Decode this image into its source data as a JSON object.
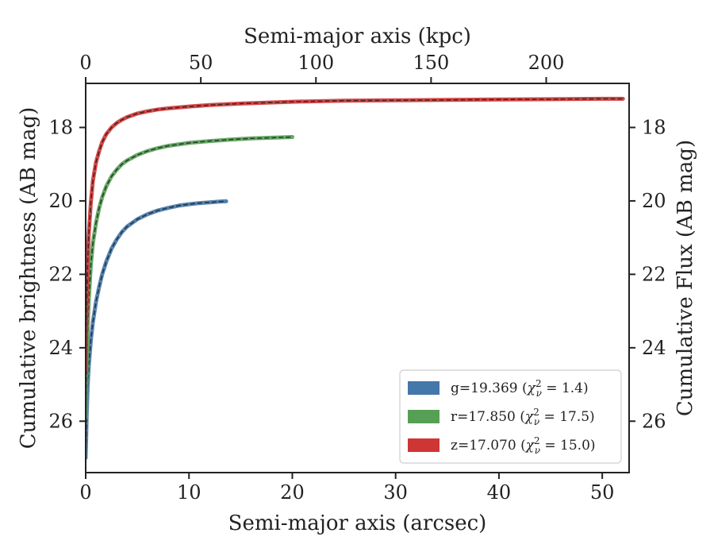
{
  "chart_data": {
    "type": "line",
    "xlabel": "Semi-major axis (arcsec)",
    "ylabel": "Cumulative brightness (AB mag)",
    "top_xlabel": "Semi-major axis (kpc)",
    "right_ylabel": "Cumulative Flux (AB mag)",
    "xlim": [
      0,
      52.6
    ],
    "ylim": [
      27.4,
      16.8
    ],
    "y_inverted": true,
    "top_xlim": [
      0,
      236
    ],
    "x_ticks": [
      0,
      10,
      20,
      30,
      40,
      50
    ],
    "x_tick_labels": [
      "0",
      "10",
      "20",
      "30",
      "40",
      "50"
    ],
    "y_ticks": [
      18,
      20,
      22,
      24,
      26
    ],
    "y_tick_labels": [
      "18",
      "20",
      "22",
      "24",
      "26"
    ],
    "top_x_ticks": [
      0,
      50,
      100,
      150,
      200
    ],
    "top_x_tick_labels": [
      "0",
      "50",
      "100",
      "150",
      "200"
    ],
    "legend_position": "lower-right",
    "grid": false,
    "model_line_color": "#111111",
    "model_line_style": "dashed",
    "series": [
      {
        "name": "g=19.369 (χ²ν = 1.4)",
        "legend_main": "g=19.369 (",
        "legend_math": "χ",
        "legend_sup": "2",
        "legend_sub": "ν",
        "legend_eq": " = 1.4)",
        "color": "#4477aa",
        "x": [
          0.0,
          0.05,
          0.1,
          0.2,
          0.3,
          0.5,
          0.7,
          1.0,
          1.3,
          1.6,
          2.0,
          2.5,
          3.0,
          3.5,
          4.0,
          5.0,
          6.0,
          7.0,
          8.0,
          9.0,
          10.0,
          11.0,
          12.0,
          13.0,
          13.6
        ],
        "y": [
          27.0,
          26.4,
          25.8,
          25.0,
          24.5,
          23.8,
          23.3,
          22.75,
          22.35,
          22.0,
          21.65,
          21.3,
          21.05,
          20.85,
          20.7,
          20.5,
          20.36,
          20.26,
          20.19,
          20.13,
          20.09,
          20.06,
          20.04,
          20.02,
          20.01
        ]
      },
      {
        "name": "r=17.850 (χ²ν = 17.5)",
        "legend_main": "r=17.850 (",
        "legend_math": "χ",
        "legend_sup": "2",
        "legend_sub": "ν",
        "legend_eq": " = 17.5)",
        "color": "#55a055",
        "x": [
          0.0,
          0.05,
          0.1,
          0.2,
          0.3,
          0.5,
          0.7,
          1.0,
          1.3,
          1.6,
          2.0,
          2.5,
          3.0,
          3.5,
          4.0,
          5.0,
          6.0,
          7.0,
          8.0,
          10.0,
          12.0,
          14.0,
          16.0,
          18.0,
          20.0
        ],
        "y": [
          25.9,
          25.0,
          24.4,
          23.4,
          22.7,
          21.75,
          21.15,
          20.6,
          20.2,
          19.9,
          19.6,
          19.33,
          19.15,
          19.0,
          18.9,
          18.75,
          18.64,
          18.56,
          18.5,
          18.42,
          18.37,
          18.33,
          18.3,
          18.28,
          18.26
        ]
      },
      {
        "name": "z=17.070 (χ²ν = 15.0)",
        "legend_main": "z=17.070 (",
        "legend_math": "χ",
        "legend_sup": "2",
        "legend_sub": "ν",
        "legend_eq": " = 15.0)",
        "color": "#d03535",
        "x": [
          0.0,
          0.05,
          0.1,
          0.2,
          0.3,
          0.5,
          0.7,
          1.0,
          1.3,
          1.6,
          2.0,
          2.5,
          3.0,
          3.5,
          4.0,
          5.0,
          6.0,
          7.0,
          8.0,
          10.0,
          12.0,
          15.0,
          20.0,
          25.0,
          30.0,
          35.0,
          40.0,
          45.0,
          50.0,
          52.0
        ],
        "y": [
          24.6,
          23.4,
          22.7,
          21.6,
          20.9,
          20.05,
          19.45,
          18.95,
          18.65,
          18.4,
          18.18,
          18.0,
          17.88,
          17.79,
          17.72,
          17.62,
          17.56,
          17.51,
          17.48,
          17.43,
          17.39,
          17.35,
          17.3,
          17.27,
          17.26,
          17.25,
          17.24,
          17.23,
          17.22,
          17.22
        ]
      }
    ]
  }
}
